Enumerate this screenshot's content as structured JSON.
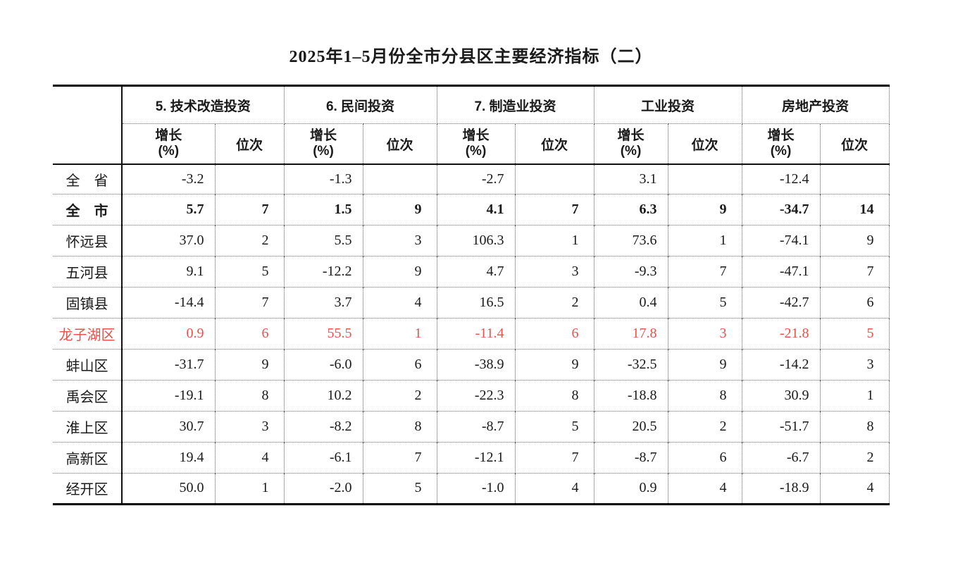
{
  "page": {
    "title": "2025年1–5月份全市分县区主要经济指标（二）",
    "background": "#ffffff"
  },
  "table": {
    "corner_label": "",
    "column_groups": [
      {
        "label": "5. 技术改造投资"
      },
      {
        "label": "6. 民间投资"
      },
      {
        "label": "7. 制造业投资"
      },
      {
        "label": "工业投资"
      },
      {
        "label": "房地产投资"
      }
    ],
    "sub_headers": {
      "growth_line1": "增长",
      "growth_line2": "(%)",
      "rank": "位次"
    },
    "rows": [
      {
        "label": "全　省",
        "values": [
          "-3.2",
          "",
          "-1.3",
          "",
          "-2.7",
          "",
          "3.1",
          "",
          "-12.4",
          ""
        ]
      },
      {
        "label": "全　市",
        "bold": true,
        "values": [
          "5.7",
          "7",
          "1.5",
          "9",
          "4.1",
          "7",
          "6.3",
          "9",
          "-34.7",
          "14"
        ]
      },
      {
        "label": "怀远县",
        "values": [
          "37.0",
          "2",
          "5.5",
          "3",
          "106.3",
          "1",
          "73.6",
          "1",
          "-74.1",
          "9"
        ]
      },
      {
        "label": "五河县",
        "values": [
          "9.1",
          "5",
          "-12.2",
          "9",
          "4.7",
          "3",
          "-9.3",
          "7",
          "-47.1",
          "7"
        ]
      },
      {
        "label": "固镇县",
        "values": [
          "-14.4",
          "7",
          "3.7",
          "4",
          "16.5",
          "2",
          "0.4",
          "5",
          "-42.7",
          "6"
        ]
      },
      {
        "label": "龙子湖区",
        "highlight": true,
        "values": [
          "0.9",
          "6",
          "55.5",
          "1",
          "-11.4",
          "6",
          "17.8",
          "3",
          "-21.8",
          "5"
        ]
      },
      {
        "label": "蚌山区",
        "values": [
          "-31.7",
          "9",
          "-6.0",
          "6",
          "-38.9",
          "9",
          "-32.5",
          "9",
          "-14.2",
          "3"
        ]
      },
      {
        "label": "禹会区",
        "values": [
          "-19.1",
          "8",
          "10.2",
          "2",
          "-22.3",
          "8",
          "-18.8",
          "8",
          "30.9",
          "1"
        ]
      },
      {
        "label": "淮上区",
        "values": [
          "30.7",
          "3",
          "-8.2",
          "8",
          "-8.7",
          "5",
          "20.5",
          "2",
          "-51.7",
          "8"
        ]
      },
      {
        "label": "高新区",
        "values": [
          "19.4",
          "4",
          "-6.1",
          "7",
          "-12.1",
          "7",
          "-8.7",
          "6",
          "-6.7",
          "2"
        ]
      },
      {
        "label": "经开区",
        "values": [
          "50.0",
          "1",
          "-2.0",
          "5",
          "-1.0",
          "4",
          "0.9",
          "4",
          "-18.9",
          "4"
        ]
      }
    ],
    "colors": {
      "highlight_red": "#e8524a",
      "text": "#1a1a1a"
    }
  }
}
